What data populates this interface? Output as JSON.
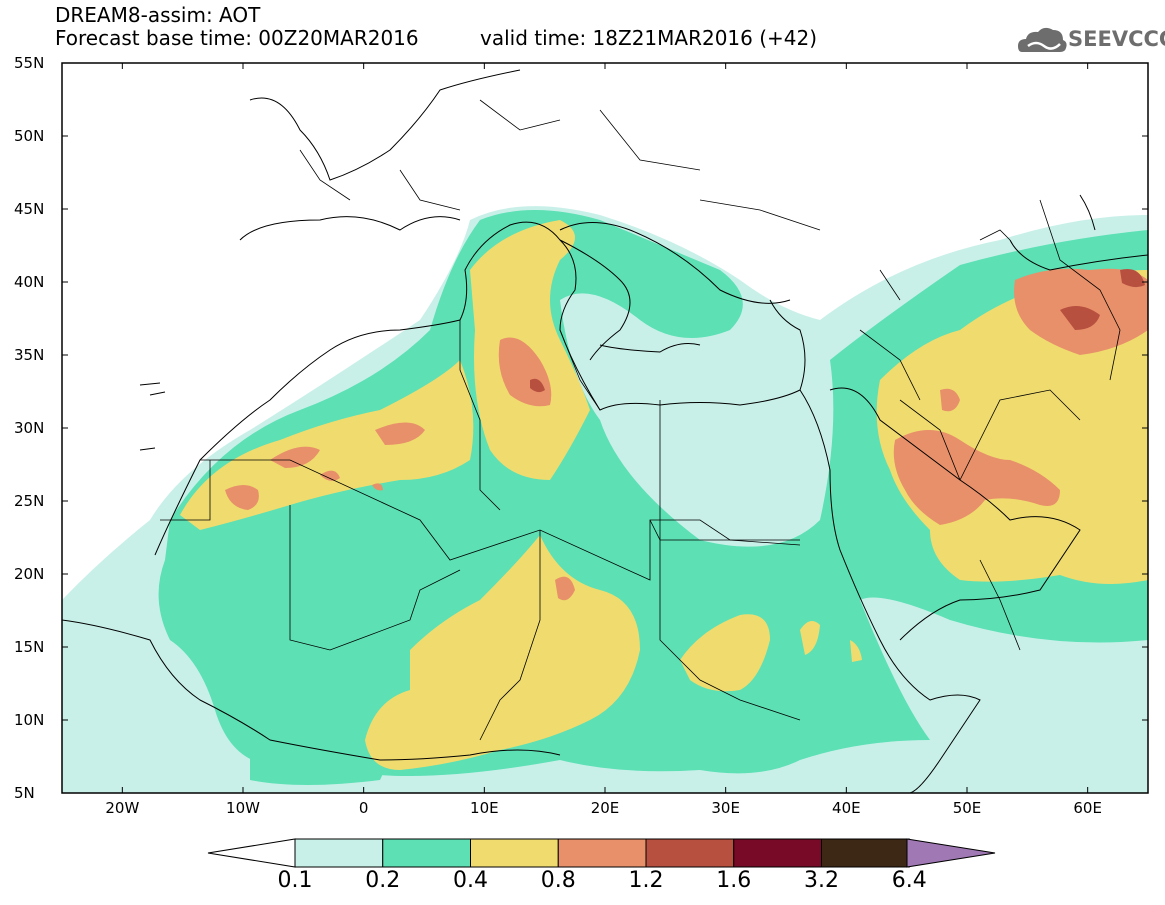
{
  "header": {
    "title": "DREAM8-assim: AOT",
    "forecast": "Forecast base time: 00Z20MAR2016",
    "valid": "valid time: 18Z21MAR2016 (+42)",
    "logo_text": "SEEVCCC"
  },
  "map": {
    "lon_range": [
      -25,
      65
    ],
    "lat_range": [
      5,
      55
    ],
    "variable": "AOT",
    "lat_labels": [
      "55N",
      "50N",
      "45N",
      "40N",
      "35N",
      "30N",
      "25N",
      "20N",
      "15N",
      "10N",
      "5N"
    ],
    "lon_labels": [
      "20W",
      "10W",
      "0",
      "10E",
      "20E",
      "30E",
      "40E",
      "50E",
      "60E"
    ],
    "lat_values": [
      55,
      50,
      45,
      40,
      35,
      30,
      25,
      20,
      15,
      10,
      5
    ],
    "lon_values": [
      -20,
      -10,
      0,
      10,
      20,
      30,
      40,
      50,
      60
    ]
  },
  "colorbar": {
    "levels": [
      "0.1",
      "0.2",
      "0.4",
      "0.8",
      "1.2",
      "1.6",
      "3.2",
      "6.4"
    ],
    "colors": [
      "#c8f0e8",
      "#5ce0b4",
      "#f0dc6e",
      "#e8906a",
      "#b85040",
      "#780a28",
      "#3c2814",
      "#a078b4"
    ]
  },
  "colors": {
    "c01": "#c8f0e8",
    "c02": "#5ce0b4",
    "c04": "#f0dc6e",
    "c08": "#e8906a",
    "c12": "#b85040"
  }
}
